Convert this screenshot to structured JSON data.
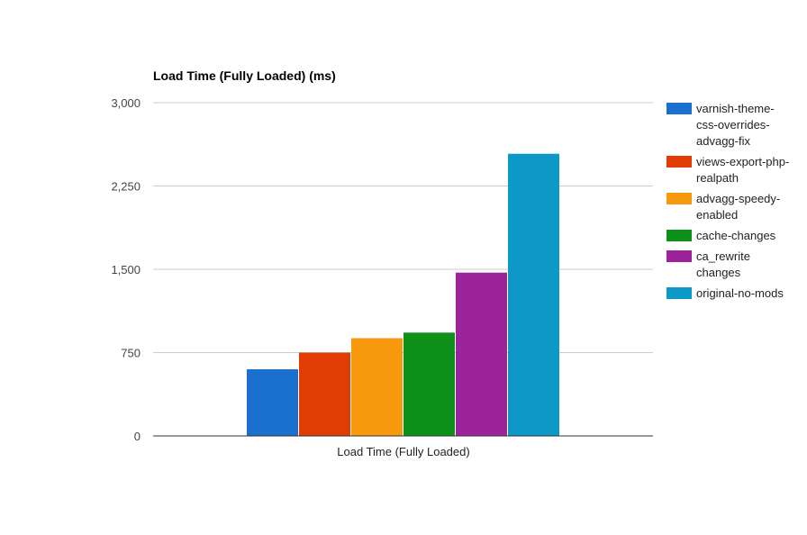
{
  "chart_data": {
    "type": "bar",
    "title": "Load Time (Fully Loaded) (ms)",
    "categories": [
      "Load Time (Fully Loaded)"
    ],
    "series": [
      {
        "name": "varnish-theme-css-overrides-advagg-fix",
        "values": [
          600
        ],
        "color": "#1a6fcf"
      },
      {
        "name": "views-export-php-realpath",
        "values": [
          750
        ],
        "color": "#e03c03"
      },
      {
        "name": "advagg-speedy-enabled",
        "values": [
          880
        ],
        "color": "#f7990c"
      },
      {
        "name": "cache-changes",
        "values": [
          930
        ],
        "color": "#0d9118"
      },
      {
        "name": "ca_rewrite changes",
        "values": [
          1470
        ],
        "color": "#9c239b"
      },
      {
        "name": "original-no-mods",
        "values": [
          2540
        ],
        "color": "#0d99c8"
      }
    ],
    "legend_lines": [
      [
        "varnish-theme-",
        "css-overrides-",
        "advagg-fix"
      ],
      [
        "views-export-php-",
        "realpath"
      ],
      [
        "advagg-speedy-",
        "enabled"
      ],
      [
        "cache-changes"
      ],
      [
        "ca_rewrite",
        "changes"
      ],
      [
        "original-no-mods"
      ]
    ],
    "yticks": [
      "0",
      "750",
      "1,500",
      "2,250",
      "3,000"
    ],
    "ytick_values": [
      0,
      750,
      1500,
      2250,
      3000
    ],
    "ylim": [
      0,
      3000
    ],
    "grid": true,
    "legend_position": "right"
  }
}
